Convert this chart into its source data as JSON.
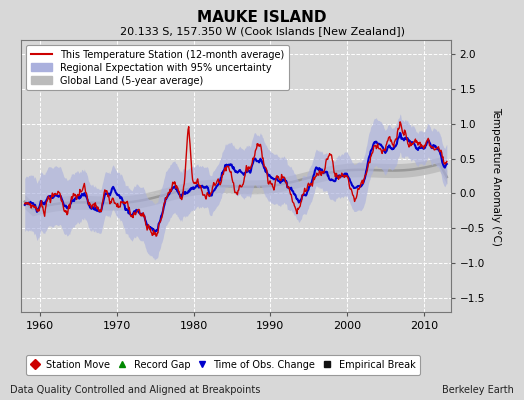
{
  "title": "MAUKE ISLAND",
  "subtitle": "20.133 S, 157.350 W (Cook Islands [New Zealand])",
  "ylabel": "Temperature Anomaly (°C)",
  "footer_left": "Data Quality Controlled and Aligned at Breakpoints",
  "footer_right": "Berkeley Earth",
  "xlim": [
    1957.5,
    2013.5
  ],
  "ylim": [
    -1.7,
    2.2
  ],
  "yticks": [
    -1.5,
    -1.0,
    -0.5,
    0.0,
    0.5,
    1.0,
    1.5,
    2.0
  ],
  "xticks": [
    1960,
    1970,
    1980,
    1990,
    2000,
    2010
  ],
  "bg_color": "#d8d8d8",
  "plot_bg_color": "#d8d8d8",
  "station_line_color": "#cc0000",
  "regional_line_color": "#0000cc",
  "regional_fill_color": "#aab0dd",
  "global_line_color": "#999999",
  "global_fill_color": "#bbbbbb",
  "legend_items": [
    {
      "label": "This Temperature Station (12-month average)",
      "color": "#cc0000",
      "lw": 1.5
    },
    {
      "label": "Regional Expectation with 95% uncertainty",
      "color": "#0000cc",
      "lw": 1.5
    },
    {
      "label": "Global Land (5-year average)",
      "color": "#999999",
      "lw": 2.0
    }
  ],
  "marker_legend": [
    {
      "label": "Station Move",
      "marker": "D",
      "color": "#cc0000"
    },
    {
      "label": "Record Gap",
      "marker": "^",
      "color": "#008800"
    },
    {
      "label": "Time of Obs. Change",
      "marker": "v",
      "color": "#0000cc"
    },
    {
      "label": "Empirical Break",
      "marker": "s",
      "color": "#111111"
    }
  ],
  "seed": 42
}
